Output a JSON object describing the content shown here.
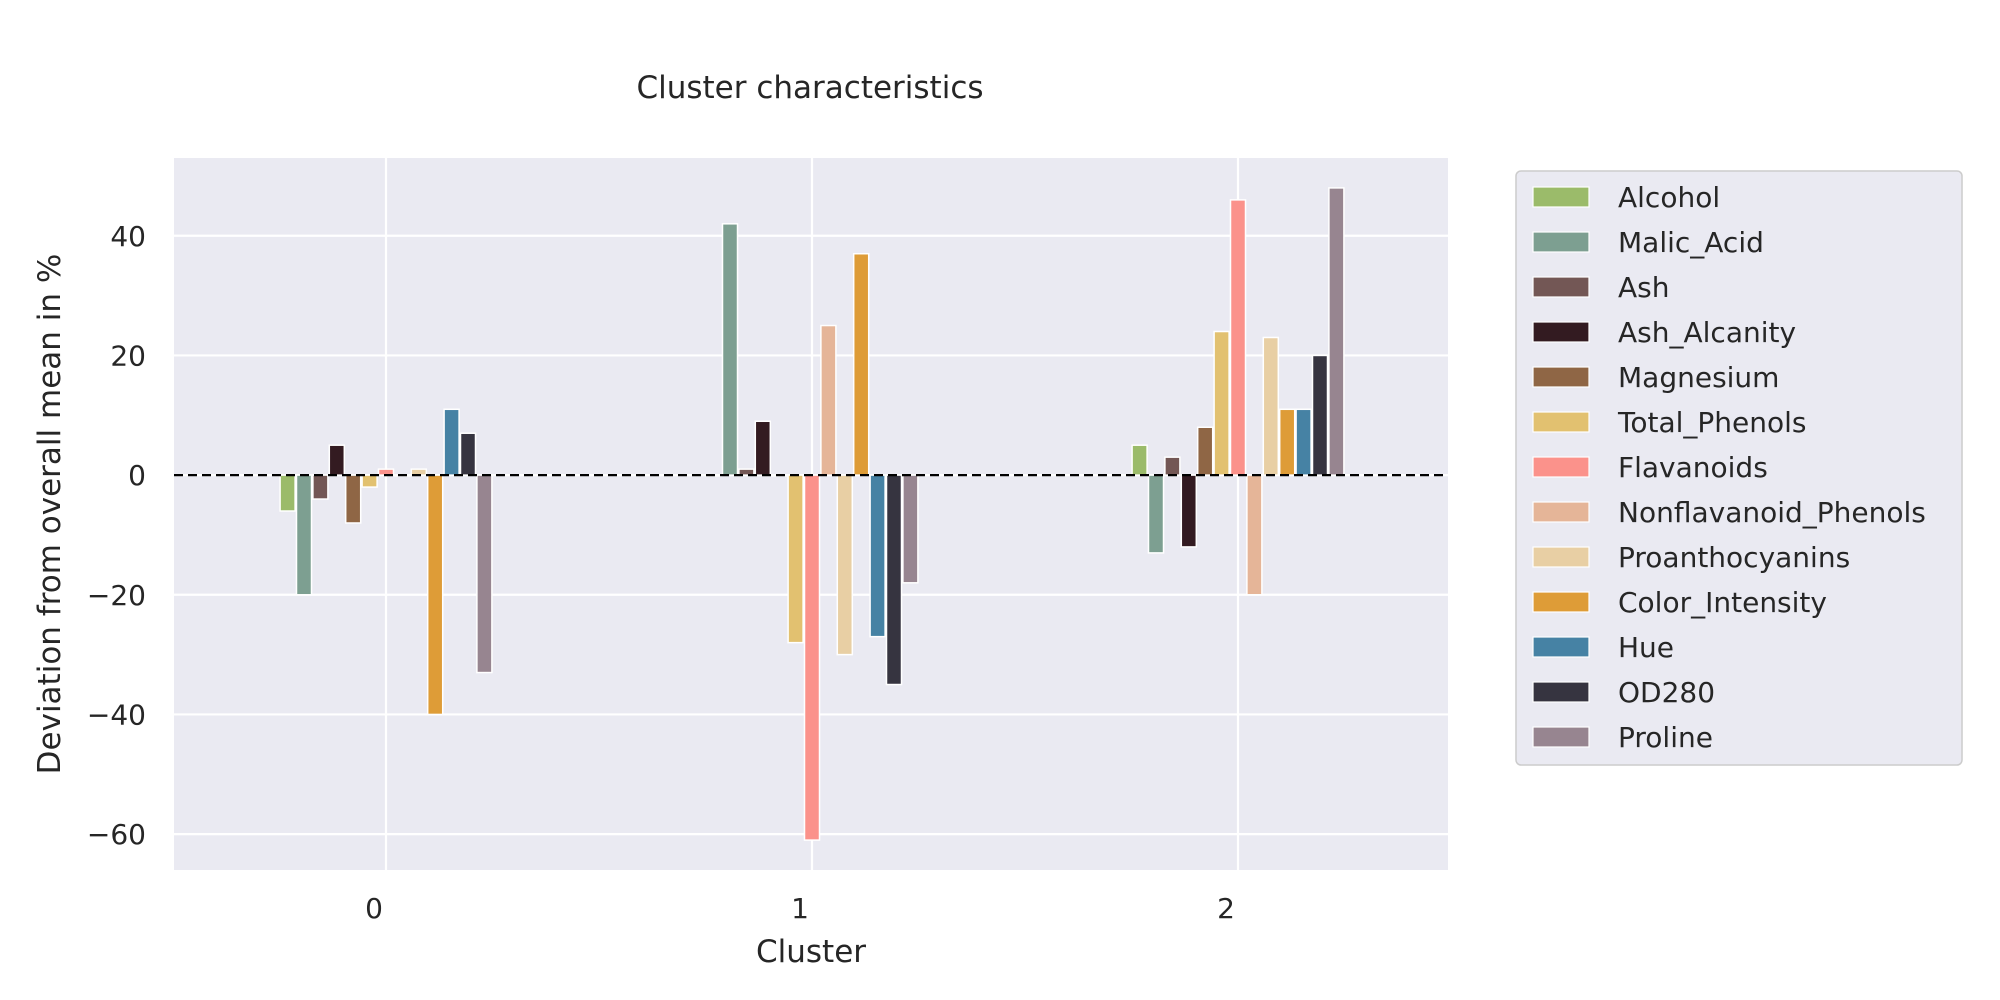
{
  "chart_data": {
    "type": "bar",
    "title": "Cluster characteristics",
    "xlabel": "Cluster",
    "ylabel": "Deviation from overall mean in %",
    "categories": [
      "0",
      "1",
      "2"
    ],
    "ylim": [
      -66,
      53
    ],
    "yticks": [
      40,
      20,
      0,
      -20,
      -40,
      -60
    ],
    "grid": true,
    "reference_line": 0,
    "legend_position": "outside-right",
    "series": [
      {
        "name": "Alcohol",
        "color": "#9bbb6a",
        "values": [
          -6,
          0,
          5
        ]
      },
      {
        "name": "Malic_Acid",
        "color": "#7d9f91",
        "values": [
          -20,
          42,
          -13
        ]
      },
      {
        "name": "Ash",
        "color": "#735755",
        "values": [
          -4,
          1,
          3
        ]
      },
      {
        "name": "Ash_Alcanity",
        "color": "#331b21",
        "values": [
          5,
          9,
          -12
        ]
      },
      {
        "name": "Magnesium",
        "color": "#8f6645",
        "values": [
          -8,
          0,
          8
        ]
      },
      {
        "name": "Total_Phenols",
        "color": "#e2c170",
        "values": [
          -2,
          -28,
          24
        ]
      },
      {
        "name": "Flavanoids",
        "color": "#fb928b",
        "values": [
          1,
          -61,
          46
        ]
      },
      {
        "name": "Nonflavanoid_Phenols",
        "color": "#e5b598",
        "values": [
          0,
          25,
          -20
        ]
      },
      {
        "name": "Proanthocyanins",
        "color": "#e8cfa4",
        "values": [
          1,
          -30,
          23
        ]
      },
      {
        "name": "Color_Intensity",
        "color": "#de9c37",
        "values": [
          -40,
          37,
          11
        ]
      },
      {
        "name": "Hue",
        "color": "#4682a4",
        "values": [
          11,
          -27,
          11
        ]
      },
      {
        "name": "OD280",
        "color": "#363440",
        "values": [
          7,
          -35,
          20
        ]
      },
      {
        "name": "Proline",
        "color": "#978590",
        "values": [
          -33,
          -18,
          48
        ]
      }
    ]
  }
}
